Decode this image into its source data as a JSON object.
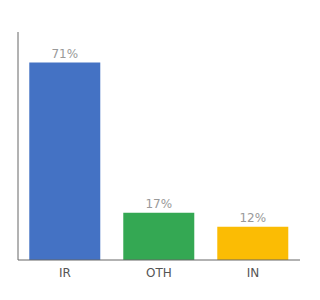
{
  "chart_data": {
    "type": "bar",
    "categories": [
      "IR",
      "OTH",
      "IN"
    ],
    "values": [
      71,
      17,
      12
    ],
    "value_labels": [
      "71%",
      "17%",
      "12%"
    ],
    "colors": [
      "#4472c4",
      "#34a853",
      "#fbbc04"
    ],
    "ylim": [
      0,
      82
    ],
    "data_labels": true,
    "tick_labels": "x",
    "grid": false
  }
}
